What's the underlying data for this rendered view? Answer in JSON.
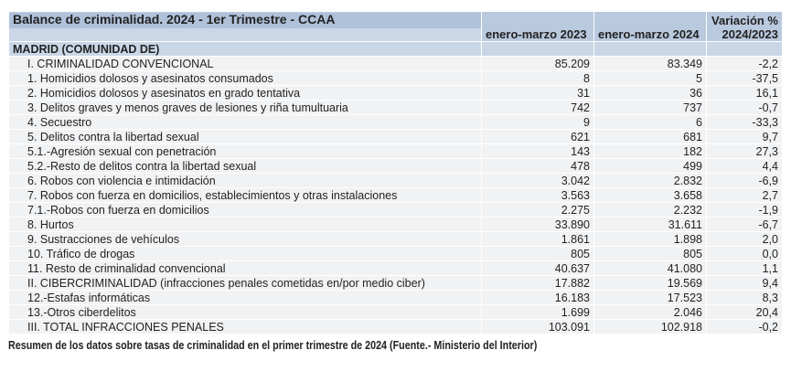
{
  "title": "Balance de criminalidad. 2024 - 1er Trimestre - CCAA",
  "columns": [
    "enero-marzo 2023",
    "enero-marzo 2024",
    "Variación %",
    "2024/2023"
  ],
  "region": "MADRID (COMUNIDAD DE)",
  "rows": [
    {
      "label": "I. CRIMINALIDAD CONVENCIONAL",
      "v2023": "85.209",
      "v2024": "83.349",
      "var": "-2,2"
    },
    {
      "label": "1. Homicidios dolosos y asesinatos consumados",
      "v2023": "8",
      "v2024": "5",
      "var": "-37,5"
    },
    {
      "label": "2. Homicidios dolosos y asesinatos en grado tentativa",
      "v2023": "31",
      "v2024": "36",
      "var": "16,1"
    },
    {
      "label": "3. Delitos graves y menos graves de lesiones y riña tumultuaria",
      "v2023": "742",
      "v2024": "737",
      "var": "-0,7"
    },
    {
      "label": "4. Secuestro",
      "v2023": "9",
      "v2024": "6",
      "var": "-33,3"
    },
    {
      "label": "5. Delitos contra la libertad sexual",
      "v2023": "621",
      "v2024": "681",
      "var": "9,7"
    },
    {
      "label": "5.1.-Agresión sexual con penetración",
      "v2023": "143",
      "v2024": "182",
      "var": "27,3"
    },
    {
      "label": "5.2.-Resto de delitos contra la libertad sexual",
      "v2023": "478",
      "v2024": "499",
      "var": "4,4"
    },
    {
      "label": "6. Robos con violencia e intimidación",
      "v2023": "3.042",
      "v2024": "2.832",
      "var": "-6,9"
    },
    {
      "label": "7. Robos con fuerza en domicilios, establecimientos y otras instalaciones",
      "v2023": "3.563",
      "v2024": "3.658",
      "var": "2,7"
    },
    {
      "label": "7.1.-Robos con fuerza en domicilios",
      "v2023": "2.275",
      "v2024": "2.232",
      "var": "-1,9"
    },
    {
      "label": "8. Hurtos",
      "v2023": "33.890",
      "v2024": "31.611",
      "var": "-6,7"
    },
    {
      "label": "9. Sustracciones de vehículos",
      "v2023": "1.861",
      "v2024": "1.898",
      "var": "2,0"
    },
    {
      "label": "10. Tráfico de drogas",
      "v2023": "805",
      "v2024": "805",
      "var": "0,0"
    },
    {
      "label": "11. Resto de criminalidad convencional",
      "v2023": "40.637",
      "v2024": "41.080",
      "var": "1,1"
    },
    {
      "label": "II. CIBERCRIMINALIDAD (infracciones penales cometidas en/por medio ciber)",
      "v2023": "17.882",
      "v2024": "19.569",
      "var": "9,4"
    },
    {
      "label": "12.-Estafas informáticas",
      "v2023": "16.183",
      "v2024": "17.523",
      "var": "8,3"
    },
    {
      "label": "13.-Otros ciberdelitos",
      "v2023": "1.699",
      "v2024": "2.046",
      "var": "20,4"
    },
    {
      "label": "III. TOTAL INFRACCIONES PENALES",
      "v2023": "103.091",
      "v2024": "102.918",
      "var": "-0,2"
    }
  ],
  "caption": "Resumen de los datos sobre tasas de criminalidad en el primer trimestre de 2024 (Fuente.- Ministerio del Interior)"
}
